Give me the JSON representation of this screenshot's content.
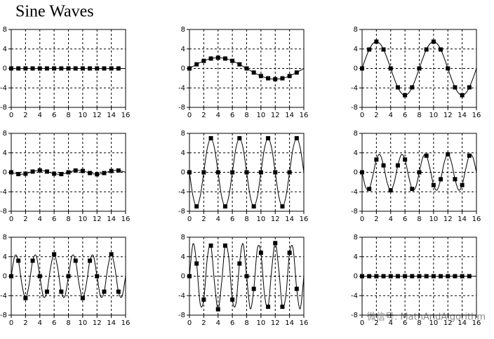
{
  "title": "Sine Waves",
  "watermark": "微信号: MathAndAlgorithm",
  "chart_data": [
    {
      "type": "line",
      "x": [
        0,
        1,
        2,
        3,
        4,
        5,
        6,
        7,
        8,
        9,
        10,
        11,
        12,
        13,
        14,
        15
      ],
      "xlim": [
        0,
        16
      ],
      "xticks": [
        0,
        2,
        4,
        6,
        8,
        10,
        12,
        14,
        16
      ],
      "ylim": [
        -8,
        8
      ],
      "yticks": [
        -8,
        -4,
        0,
        4,
        8
      ],
      "grid": true,
      "color": "#000000",
      "series": [
        {
          "values": [
            0,
            0,
            0,
            0,
            0,
            0,
            0,
            0,
            0,
            0,
            0,
            0,
            0,
            0,
            0,
            0
          ]
        },
        {
          "x": [
            0,
            0.5,
            1,
            1.5,
            2,
            2.5,
            3,
            3.5,
            4,
            4.5,
            5,
            5.5,
            6,
            6.5,
            7,
            7.5,
            8,
            8.5,
            9,
            9.5,
            10,
            10.5,
            11,
            11.5,
            12,
            12.5,
            13,
            13.5,
            14,
            14.5,
            15,
            15.5,
            16
          ],
          "values": [
            0,
            0,
            0,
            0,
            0,
            0,
            0,
            0,
            0,
            0,
            0,
            0,
            0,
            0,
            0,
            0,
            0,
            0,
            0,
            0,
            0,
            0,
            0,
            0,
            0,
            0,
            0,
            0,
            0,
            0,
            0,
            0,
            0
          ]
        }
      ]
    },
    {
      "type": "line",
      "x": [
        0,
        1,
        2,
        3,
        4,
        5,
        6,
        7,
        8,
        9,
        10,
        11,
        12,
        13,
        14,
        15
      ],
      "xlim": [
        0,
        16
      ],
      "xticks": [
        0,
        2,
        4,
        6,
        8,
        10,
        12,
        14,
        16
      ],
      "ylim": [
        -8,
        8
      ],
      "yticks": [
        -8,
        -4,
        0,
        4,
        8
      ],
      "grid": true,
      "color": "#000000",
      "series": [
        {
          "values": [
            0,
            0.84,
            1.56,
            2.03,
            2.2,
            2.03,
            1.56,
            0.84,
            0,
            -0.84,
            -1.56,
            -2.03,
            -2.2,
            -2.03,
            -1.56,
            -0.84
          ]
        },
        {
          "x": [
            0,
            0.5,
            1,
            1.5,
            2,
            2.5,
            3,
            3.5,
            4,
            4.5,
            5,
            5.5,
            6,
            6.5,
            7,
            7.5,
            8,
            8.5,
            9,
            9.5,
            10,
            10.5,
            11,
            11.5,
            12,
            12.5,
            13,
            13.5,
            14,
            14.5,
            15,
            15.5,
            16
          ],
          "values": [
            0,
            0.43,
            0.84,
            1.22,
            1.56,
            1.83,
            2.03,
            2.16,
            2.2,
            2.16,
            2.03,
            1.83,
            1.56,
            1.22,
            0.84,
            0.43,
            0,
            -0.43,
            -0.84,
            -1.22,
            -1.56,
            -1.83,
            -2.03,
            -2.16,
            -2.2,
            -2.16,
            -2.03,
            -1.83,
            -1.56,
            -1.22,
            -0.84,
            -0.43,
            0
          ]
        }
      ]
    },
    {
      "type": "line",
      "x": [
        0,
        1,
        2,
        3,
        4,
        5,
        6,
        7,
        8,
        9,
        10,
        11,
        12,
        13,
        14,
        15
      ],
      "xlim": [
        0,
        16
      ],
      "xticks": [
        0,
        2,
        4,
        6,
        8,
        10,
        12,
        14,
        16
      ],
      "ylim": [
        -8,
        8
      ],
      "yticks": [
        -8,
        -4,
        0,
        4,
        8
      ],
      "grid": true,
      "color": "#000000",
      "series": [
        {
          "values": [
            0,
            3.89,
            5.5,
            3.89,
            0,
            -3.89,
            -5.5,
            -3.89,
            0,
            3.89,
            5.5,
            3.89,
            0,
            -3.89,
            -5.5,
            -3.89
          ]
        },
        {
          "x": [
            0,
            0.5,
            1,
            1.5,
            2,
            2.5,
            3,
            3.5,
            4,
            4.5,
            5,
            5.5,
            6,
            6.5,
            7,
            7.5,
            8,
            8.5,
            9,
            9.5,
            10,
            10.5,
            11,
            11.5,
            12,
            12.5,
            13,
            13.5,
            14,
            14.5,
            15,
            15.5,
            16
          ],
          "values": [
            0,
            2.1,
            3.89,
            5.08,
            5.5,
            5.08,
            3.89,
            2.1,
            0,
            -2.1,
            -3.89,
            -5.08,
            -5.5,
            -5.08,
            -3.89,
            -2.1,
            0,
            2.1,
            3.89,
            5.08,
            5.5,
            5.08,
            3.89,
            2.1,
            0,
            -2.1,
            -3.89,
            -5.08,
            -5.5,
            -5.08,
            -3.89,
            -2.1,
            0
          ]
        }
      ]
    },
    {
      "type": "line",
      "x": [
        0,
        1,
        2,
        3,
        4,
        5,
        6,
        7,
        8,
        9,
        10,
        11,
        12,
        13,
        14,
        15
      ],
      "xlim": [
        0,
        16
      ],
      "xticks": [
        0,
        2,
        4,
        6,
        8,
        10,
        12,
        14,
        16
      ],
      "ylim": [
        -8,
        8
      ],
      "yticks": [
        -8,
        -4,
        0,
        4,
        8
      ],
      "grid": true,
      "color": "#000000",
      "series": [
        {
          "values": [
            0,
            -0.37,
            -0.28,
            0.15,
            0.4,
            0.15,
            -0.28,
            -0.37,
            0,
            0.37,
            0.28,
            -0.15,
            -0.4,
            -0.15,
            0.28,
            0.37
          ]
        },
        {
          "x": [
            0,
            0.5,
            1,
            1.5,
            2,
            2.5,
            3,
            3.5,
            4,
            4.5,
            5,
            5.5,
            6,
            6.5,
            7,
            7.5,
            8,
            8.5,
            9,
            9.5,
            10,
            10.5,
            11,
            11.5,
            12,
            12.5,
            13,
            13.5,
            14,
            14.5,
            15,
            15.5,
            16
          ],
          "values": [
            0,
            -0.22,
            -0.37,
            -0.39,
            -0.28,
            -0.08,
            0.15,
            0.33,
            0.4,
            0.33,
            0.15,
            -0.08,
            -0.28,
            -0.39,
            -0.37,
            -0.22,
            0,
            0.22,
            0.37,
            0.39,
            0.28,
            0.08,
            -0.15,
            -0.33,
            -0.4,
            -0.33,
            -0.15,
            0.08,
            0.28,
            0.39,
            0.37,
            0.22,
            0
          ]
        }
      ]
    },
    {
      "type": "line",
      "x": [
        0,
        1,
        2,
        3,
        4,
        5,
        6,
        7,
        8,
        9,
        10,
        11,
        12,
        13,
        14,
        15
      ],
      "xlim": [
        0,
        16
      ],
      "xticks": [
        0,
        2,
        4,
        6,
        8,
        10,
        12,
        14,
        16
      ],
      "ylim": [
        -8,
        8
      ],
      "yticks": [
        -8,
        -4,
        0,
        4,
        8
      ],
      "grid": true,
      "color": "#000000",
      "series": [
        {
          "values": [
            0,
            -7,
            0,
            7,
            0,
            -7,
            0,
            7,
            0,
            -7,
            0,
            7,
            0,
            -7,
            0,
            7
          ]
        },
        {
          "x": [
            0,
            0.5,
            1,
            1.5,
            2,
            2.5,
            3,
            3.5,
            4,
            4.5,
            5,
            5.5,
            6,
            6.5,
            7,
            7.5,
            8,
            8.5,
            9,
            9.5,
            10,
            10.5,
            11,
            11.5,
            12,
            12.5,
            13,
            13.5,
            14,
            14.5,
            15,
            15.5,
            16
          ],
          "values": [
            0,
            -4.95,
            -7,
            -4.95,
            0,
            4.95,
            7,
            4.95,
            0,
            -4.95,
            -7,
            -4.95,
            0,
            4.95,
            7,
            4.95,
            0,
            -4.95,
            -7,
            -4.95,
            0,
            4.95,
            7,
            4.95,
            0,
            -4.95,
            -7,
            -4.95,
            0,
            4.95,
            7,
            4.95,
            0
          ]
        }
      ]
    },
    {
      "type": "line",
      "x": [
        0,
        1,
        2,
        3,
        4,
        5,
        6,
        7,
        8,
        9,
        10,
        11,
        12,
        13,
        14,
        15
      ],
      "xlim": [
        0,
        16
      ],
      "xticks": [
        0,
        2,
        4,
        6,
        8,
        10,
        12,
        14,
        16
      ],
      "ylim": [
        -8,
        8
      ],
      "yticks": [
        -8,
        -4,
        0,
        4,
        8
      ],
      "grid": true,
      "color": "#000000",
      "series": [
        {
          "values": [
            0,
            -3.42,
            2.62,
            1.42,
            -3.7,
            1.42,
            2.62,
            -3.42,
            0,
            3.42,
            -2.62,
            -1.42,
            3.7,
            -1.42,
            -2.62,
            3.42
          ]
        },
        {
          "x": [
            0,
            0.5,
            1,
            1.5,
            2,
            2.5,
            3,
            3.5,
            4,
            4.5,
            5,
            5.5,
            6,
            6.5,
            7,
            7.5,
            8,
            8.5,
            9,
            9.5,
            10,
            10.5,
            11,
            11.5,
            12,
            12.5,
            13,
            13.5,
            14,
            14.5,
            15,
            15.5,
            16
          ],
          "values": [
            0,
            -3.07,
            -3.42,
            -0.72,
            2.62,
            3.63,
            1.42,
            -2.06,
            -3.7,
            -2.06,
            1.42,
            3.63,
            2.62,
            -0.72,
            -3.42,
            -3.07,
            0,
            3.07,
            3.42,
            0.72,
            -2.62,
            -3.63,
            -1.42,
            2.06,
            3.7,
            2.06,
            -1.42,
            -3.63,
            -2.62,
            0.72,
            3.42,
            3.07,
            0
          ]
        }
      ]
    },
    {
      "type": "line",
      "x": [
        0,
        1,
        2,
        3,
        4,
        5,
        6,
        7,
        8,
        9,
        10,
        11,
        12,
        13,
        14,
        15
      ],
      "xlim": [
        0,
        16
      ],
      "xticks": [
        0,
        2,
        4,
        6,
        8,
        10,
        12,
        14,
        16
      ],
      "ylim": [
        -8,
        8
      ],
      "yticks": [
        -8,
        -4,
        0,
        4,
        8
      ],
      "grid": true,
      "color": "#000000",
      "series": [
        {
          "values": [
            0,
            3.18,
            -4.5,
            3.18,
            0,
            -3.18,
            4.5,
            -3.18,
            0,
            3.18,
            -4.5,
            3.18,
            0,
            -3.18,
            4.5,
            -3.18
          ]
        },
        {
          "x": [
            0,
            0.5,
            1,
            1.5,
            2,
            2.5,
            3,
            3.5,
            4,
            4.5,
            5,
            5.5,
            6,
            6.5,
            7,
            7.5,
            8,
            8.5,
            9,
            9.5,
            10,
            10.5,
            11,
            11.5,
            12,
            12.5,
            13,
            13.5,
            14,
            14.5,
            15,
            15.5,
            16
          ],
          "values": [
            0,
            4.16,
            3.18,
            -1.72,
            -4.5,
            -1.72,
            3.18,
            4.16,
            0,
            -4.16,
            -3.18,
            1.72,
            4.5,
            1.72,
            -3.18,
            -4.16,
            0,
            4.16,
            3.18,
            -1.72,
            -4.5,
            -1.72,
            3.18,
            4.16,
            0,
            -4.16,
            -3.18,
            1.72,
            4.5,
            1.72,
            -3.18,
            -4.16,
            0
          ]
        }
      ]
    },
    {
      "type": "line",
      "x": [
        0,
        1,
        2,
        3,
        4,
        5,
        6,
        7,
        8,
        9,
        10,
        11,
        12,
        13,
        14,
        15
      ],
      "xlim": [
        0,
        16
      ],
      "xticks": [
        0,
        2,
        4,
        6,
        8,
        10,
        12,
        14,
        16
      ],
      "ylim": [
        -8,
        8
      ],
      "yticks": [
        -8,
        -4,
        0,
        4,
        8
      ],
      "grid": true,
      "color": "#000000",
      "series": [
        {
          "values": [
            0,
            2.6,
            -4.81,
            6.28,
            -6.8,
            6.28,
            -4.81,
            2.6,
            0,
            -2.6,
            4.81,
            -6.28,
            6.8,
            -6.28,
            4.81,
            -2.6
          ]
        },
        {
          "x": [
            0,
            0.5,
            1,
            1.5,
            2,
            2.5,
            3,
            3.5,
            4,
            4.5,
            5,
            5.5,
            6,
            6.5,
            7,
            7.5,
            8,
            8.5,
            9,
            9.5,
            10,
            10.5,
            11,
            11.5,
            12,
            12.5,
            13,
            13.5,
            14,
            14.5,
            15,
            15.5,
            16
          ],
          "values": [
            0,
            6.67,
            2.6,
            -5.65,
            -4.81,
            3.78,
            6.28,
            -1.33,
            -6.8,
            -1.33,
            6.28,
            3.78,
            -4.81,
            -5.65,
            2.6,
            6.67,
            0,
            -6.67,
            -2.6,
            5.65,
            4.81,
            -3.78,
            -6.28,
            1.33,
            6.8,
            1.33,
            -6.28,
            -3.78,
            4.81,
            5.65,
            -2.6,
            -6.67,
            0
          ]
        }
      ]
    },
    {
      "type": "line",
      "x": [
        0,
        1,
        2,
        3,
        4,
        5,
        6,
        7,
        8,
        9,
        10,
        11,
        12,
        13,
        14,
        15
      ],
      "xlim": [
        0,
        16
      ],
      "xticks": [
        0,
        2,
        4,
        6,
        8,
        10,
        12,
        14,
        16
      ],
      "ylim": [
        -8,
        8
      ],
      "yticks": [
        -8,
        -4,
        0,
        4,
        8
      ],
      "grid": true,
      "color": "#000000",
      "series": [
        {
          "values": [
            0,
            0,
            0,
            0,
            0,
            0,
            0,
            0,
            0,
            0,
            0,
            0,
            0,
            0,
            0,
            0
          ]
        },
        {
          "x": [
            0,
            0.5,
            1,
            1.5,
            2,
            2.5,
            3,
            3.5,
            4,
            4.5,
            5,
            5.5,
            6,
            6.5,
            7,
            7.5,
            8,
            8.5,
            9,
            9.5,
            10,
            10.5,
            11,
            11.5,
            12,
            12.5,
            13,
            13.5,
            14,
            14.5,
            15,
            15.5,
            16
          ],
          "values": [
            0,
            0,
            0,
            0,
            0,
            0,
            0,
            0,
            0,
            0,
            0,
            0,
            0,
            0,
            0,
            0,
            0,
            0,
            0,
            0,
            0,
            0,
            0,
            0,
            0,
            0,
            0,
            0,
            0,
            0,
            0,
            0,
            0
          ]
        }
      ]
    }
  ]
}
